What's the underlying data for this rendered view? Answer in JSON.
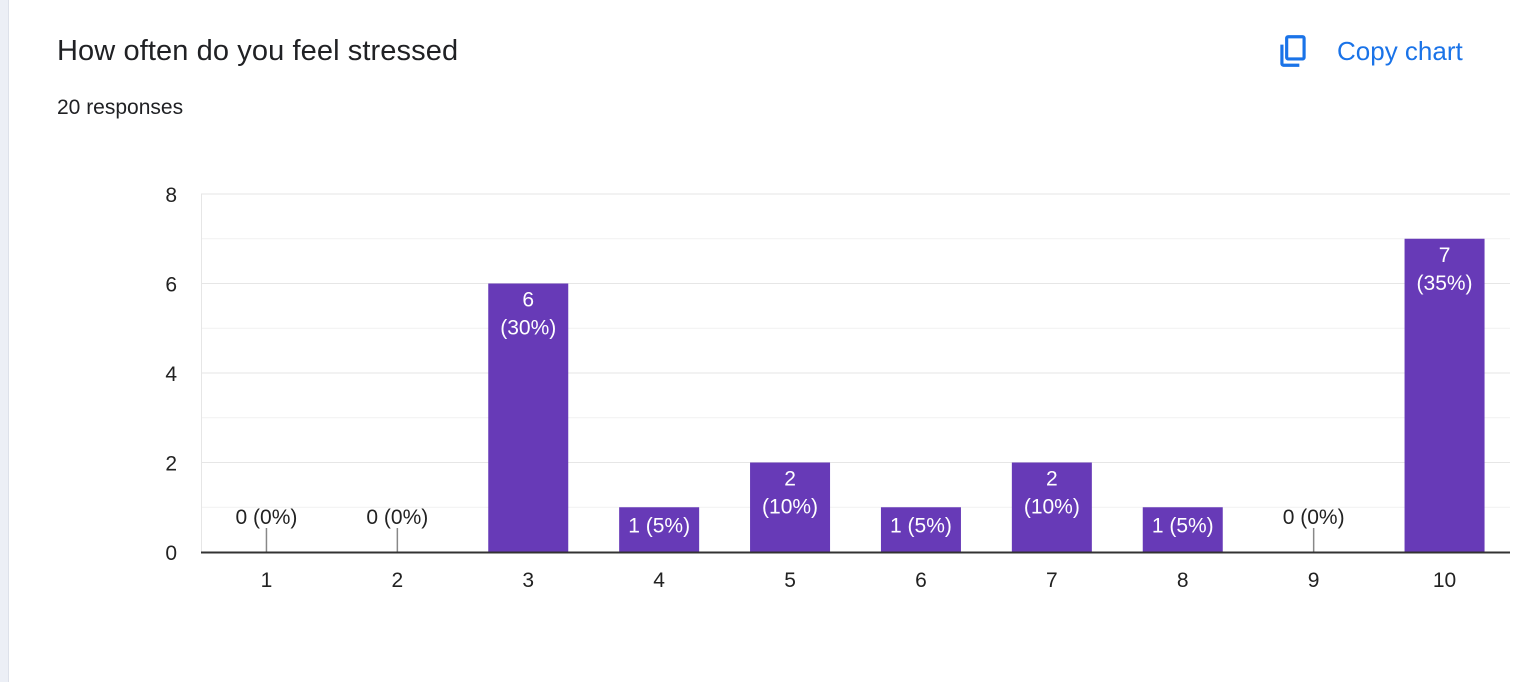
{
  "header": {
    "title": "How often do you feel stressed",
    "responses": "20 responses",
    "copy_chart_label": "Copy chart"
  },
  "icons": {
    "copy": "copy-icon"
  },
  "colors": {
    "bar": "#673ab7",
    "accent": "#1a73e8",
    "grid": "#e6e6e6",
    "axis": "#333333"
  },
  "chart_data": {
    "type": "bar",
    "title": "How often do you feel stressed",
    "xlabel": "",
    "ylabel": "",
    "categories": [
      "1",
      "2",
      "3",
      "4",
      "5",
      "6",
      "7",
      "8",
      "9",
      "10"
    ],
    "values": [
      0,
      0,
      6,
      1,
      2,
      1,
      2,
      1,
      0,
      7
    ],
    "data_labels": [
      "0 (0%)",
      "0 (0%)",
      "6\n(30%)",
      "1 (5%)",
      "2\n(10%)",
      "1 (5%)",
      "2\n(10%)",
      "1 (5%)",
      "0 (0%)",
      "7\n(35%)"
    ],
    "y_ticks": [
      0,
      2,
      4,
      6,
      8
    ],
    "ylim": [
      0,
      8
    ],
    "grid": true,
    "legend": "none"
  }
}
